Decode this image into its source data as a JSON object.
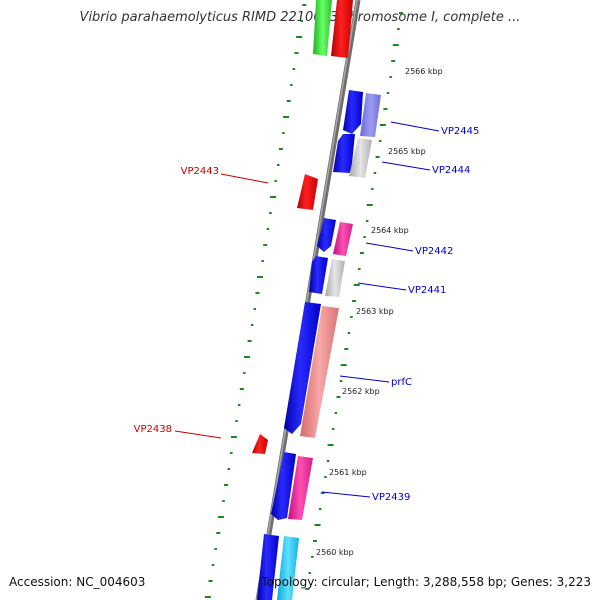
{
  "title": "Vibrio parahaemolyticus RIMD 2210633 chromosome I, complete ...",
  "footer": {
    "accession": "Accession: NC_004603",
    "topology": "Topology: circular; Length: 3,288,558 bp; Genes: 3,223"
  },
  "ticks": [
    {
      "label": "2566 kbp"
    },
    {
      "label": "2565 kbp"
    },
    {
      "label": "2564 kbp"
    },
    {
      "label": "2563 kbp"
    },
    {
      "label": "2562 kbp"
    },
    {
      "label": "2561 kbp"
    },
    {
      "label": "2560 kbp"
    }
  ],
  "gene_labels": [
    {
      "name": "VP2445",
      "color": "#0000cc"
    },
    {
      "name": "VP2444",
      "color": "#0000cc"
    },
    {
      "name": "VP2443",
      "color": "#cc0000"
    },
    {
      "name": "VP2442",
      "color": "#0000cc"
    },
    {
      "name": "VP2441",
      "color": "#0000cc"
    },
    {
      "name": "prfC",
      "color": "#0000cc"
    },
    {
      "name": "VP2438",
      "color": "#cc0000"
    },
    {
      "name": "VP2439",
      "color": "#0000cc"
    }
  ],
  "colors": {
    "backbone": "#808080",
    "cds_blue": "#0000ff",
    "gc_dots": "#1a8a1a",
    "reverse_cds": "#ff0000"
  }
}
